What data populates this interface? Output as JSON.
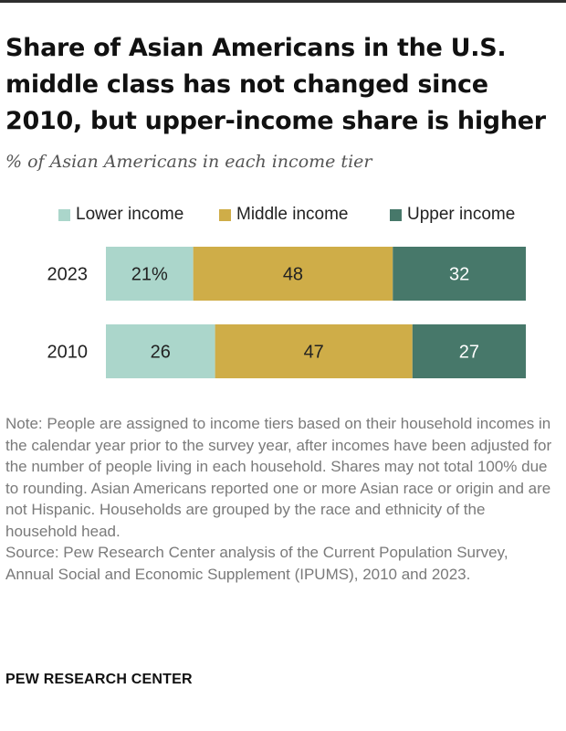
{
  "header": {
    "title": "Share of Asian Americans in the U.S. middle class has not changed since 2010, but upper-income share is higher",
    "subtitle": "% of Asian Americans in each income tier"
  },
  "chart_data": {
    "type": "bar",
    "orientation": "horizontal",
    "stacked": true,
    "categories": [
      "2023",
      "2010"
    ],
    "series": [
      {
        "name": "Lower income",
        "values": [
          21,
          26
        ],
        "labels": [
          "21%",
          "26"
        ],
        "color": "#abd6cb"
      },
      {
        "name": "Middle income",
        "values": [
          48,
          47
        ],
        "labels": [
          "48",
          "47"
        ],
        "color": "#cfad48"
      },
      {
        "name": "Upper income",
        "values": [
          32,
          27
        ],
        "labels": [
          "32",
          "27"
        ],
        "color": "#47786a"
      }
    ],
    "legend_position": "top",
    "grid": false
  },
  "footer": {
    "note": "Note: People are assigned to income tiers based on their household incomes in the calendar year prior to the survey year, after incomes have been adjusted for the number of people living in each household. Shares may not total 100% due to rounding. Asian Americans reported one or more Asian race or origin and are not Hispanic. Households are grouped by the race and ethnicity of the household head.",
    "source": "Source: Pew Research Center analysis of the Current Population Survey, Annual Social and Economic Supplement (IPUMS), 2010 and 2023.",
    "brand": "PEW RESEARCH CENTER"
  }
}
